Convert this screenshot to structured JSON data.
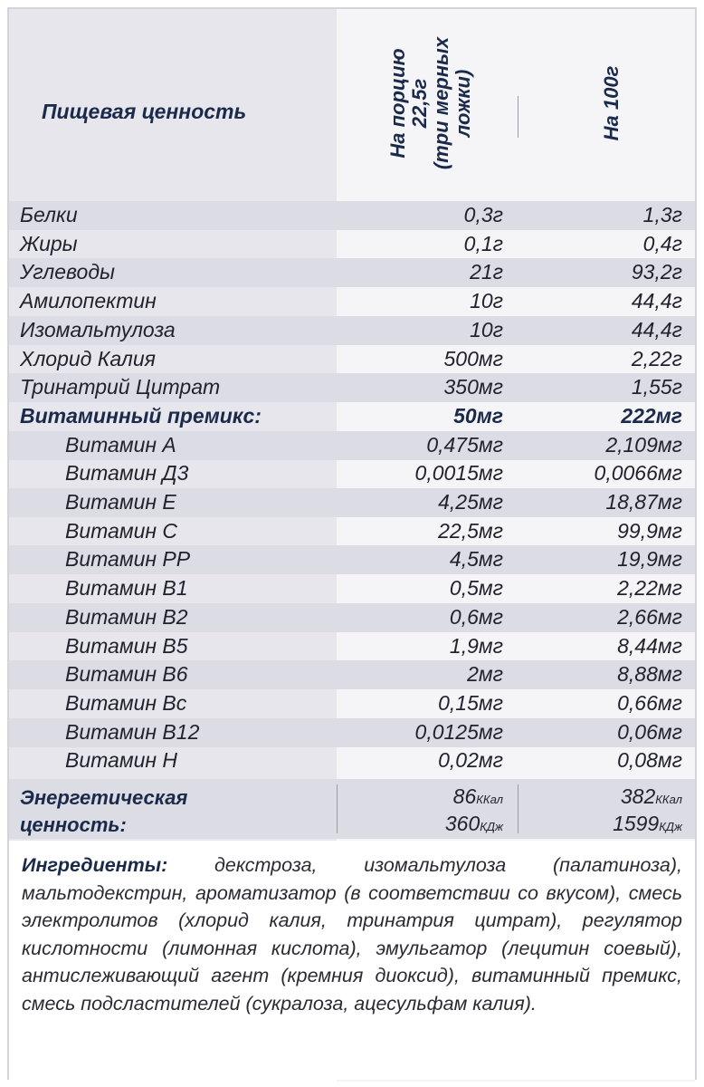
{
  "header": {
    "title": "Пищевая ценность",
    "col_portion": [
      "На порцию",
      "22,5г",
      "(три мерных",
      "ложки)"
    ],
    "col_100g": "На 100г"
  },
  "rows": [
    {
      "name": "Белки",
      "portion": "0,3г",
      "per100": "1,3г",
      "indent": false,
      "bold": false
    },
    {
      "name": "Жиры",
      "portion": "0,1г",
      "per100": "0,4г",
      "indent": false,
      "bold": false
    },
    {
      "name": "Углеводы",
      "portion": "21г",
      "per100": "93,2г",
      "indent": false,
      "bold": false
    },
    {
      "name": "Амилопектин",
      "portion": "10г",
      "per100": "44,4г",
      "indent": false,
      "bold": false
    },
    {
      "name": "Изомальтулоза",
      "portion": "10г",
      "per100": "44,4г",
      "indent": false,
      "bold": false
    },
    {
      "name": "Хлорид Калия",
      "portion": "500мг",
      "per100": "2,22г",
      "indent": false,
      "bold": false
    },
    {
      "name": "Тринатрий Цитрат",
      "portion": "350мг",
      "per100": "1,55г",
      "indent": false,
      "bold": false
    },
    {
      "name": "Витаминный премикс:",
      "portion": "50мг",
      "per100": "222мг",
      "indent": false,
      "bold": true
    },
    {
      "name": "Витамин А",
      "portion": "0,475мг",
      "per100": "2,109мг",
      "indent": true,
      "bold": false
    },
    {
      "name": "Витамин Д3",
      "portion": "0,0015мг",
      "per100": "0,0066мг",
      "indent": true,
      "bold": false
    },
    {
      "name": "Витамин Е",
      "portion": "4,25мг",
      "per100": "18,87мг",
      "indent": true,
      "bold": false
    },
    {
      "name": "Витамин С",
      "portion": "22,5мг",
      "per100": "99,9мг",
      "indent": true,
      "bold": false
    },
    {
      "name": "Витамин РР",
      "portion": "4,5мг",
      "per100": "19,9мг",
      "indent": true,
      "bold": false
    },
    {
      "name": "Витамин В1",
      "portion": "0,5мг",
      "per100": "2,22мг",
      "indent": true,
      "bold": false
    },
    {
      "name": "Витамин В2",
      "portion": "0,6мг",
      "per100": "2,66мг",
      "indent": true,
      "bold": false
    },
    {
      "name": "Витамин В5",
      "portion": "1,9мг",
      "per100": "8,44мг",
      "indent": true,
      "bold": false
    },
    {
      "name": "Витамин В6",
      "portion": "2мг",
      "per100": "8,88мг",
      "indent": true,
      "bold": false
    },
    {
      "name": "Витамин Вс",
      "portion": "0,15мг",
      "per100": "0,66мг",
      "indent": true,
      "bold": false
    },
    {
      "name": "Витамин В12",
      "portion": "0,0125мг",
      "per100": "0,06мг",
      "indent": true,
      "bold": false
    },
    {
      "name": "Витамин Н",
      "portion": "0,02мг",
      "per100": "0,08мг",
      "indent": true,
      "bold": false
    }
  ],
  "energy": {
    "label_line1": "Энергетическая",
    "label_line2": "ценность:",
    "portion_kcal": "86",
    "portion_kj": "360",
    "per100_kcal": "382",
    "per100_kj": "1599",
    "unit_kcal": "ККал",
    "unit_kj": "КДж"
  },
  "ingredients": {
    "label": "Ингредиенты:",
    "text": " декстроза, изомальтулоза (палатиноза), мальтодекстрин, ароматизатор (в соответствии со вкусом), смесь электролитов (хлорид калия, тринатрия цитрат), регулятор кислотности (лимонная кислота), эмульгатор (лецитин соевый), антислеживающий агент (кремния диоксид), витаминный премикс, смесь подсластителей (сукралоза, ацесульфам калия)."
  }
}
